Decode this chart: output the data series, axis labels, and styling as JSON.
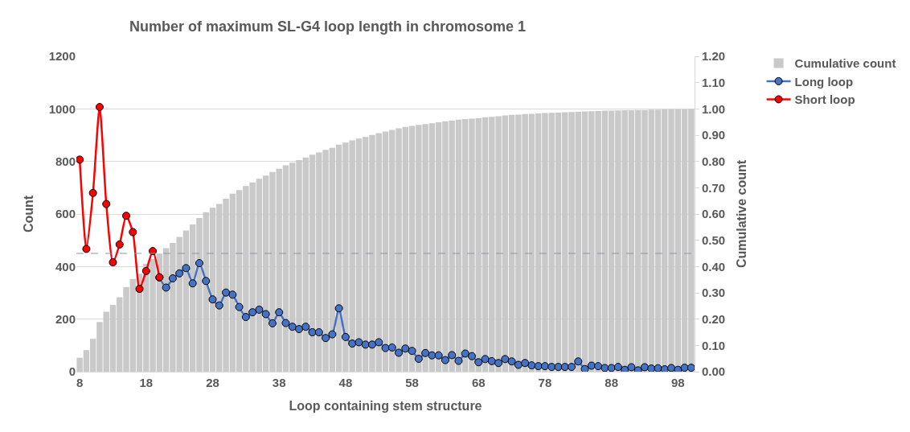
{
  "chart_data": {
    "type": "line",
    "title": "Number of maximum SL-G4 loop length in chromosome 1",
    "xlabel": "Loop containing stem structure",
    "ylabel": "Count",
    "y2label": "Cumulative count",
    "categories": [
      "8",
      null,
      null,
      null,
      null,
      null,
      null,
      null,
      null,
      null,
      "18",
      null,
      null,
      null,
      null,
      null,
      null,
      null,
      null,
      null,
      "28",
      null,
      null,
      null,
      null,
      null,
      null,
      null,
      null,
      null,
      "38",
      null,
      null,
      null,
      null,
      null,
      null,
      null,
      null,
      null,
      "48",
      null,
      null,
      null,
      null,
      null,
      null,
      null,
      null,
      null,
      "58",
      null,
      null,
      null,
      null,
      null,
      null,
      null,
      null,
      null,
      "68",
      null,
      null,
      null,
      null,
      null,
      null,
      null,
      null,
      null,
      "78",
      null,
      null,
      null,
      null,
      null,
      null,
      null,
      null,
      null,
      "88",
      null,
      null,
      null,
      null,
      null,
      null,
      null,
      null,
      null,
      "98",
      null,
      null
    ],
    "series": [
      {
        "name": "Cumulative count",
        "type": "bar",
        "axis": "y2",
        "color": "#c9c9c9",
        "values": [
          0.053,
          0.082,
          0.125,
          0.189,
          0.228,
          0.254,
          0.283,
          0.322,
          0.353,
          0.373,
          0.41,
          0.429,
          0.449,
          0.47,
          0.49,
          0.513,
          0.537,
          0.56,
          0.585,
          0.607,
          0.624,
          0.638,
          0.658,
          0.677,
          0.691,
          0.706,
          0.72,
          0.734,
          0.746,
          0.76,
          0.772,
          0.785,
          0.795,
          0.805,
          0.815,
          0.826,
          0.834,
          0.844,
          0.852,
          0.864,
          0.872,
          0.88,
          0.887,
          0.893,
          0.901,
          0.908,
          0.914,
          0.92,
          0.926,
          0.931,
          0.935,
          0.939,
          0.942,
          0.945,
          0.949,
          0.953,
          0.955,
          0.959,
          0.961,
          0.963,
          0.965,
          0.968,
          0.97,
          0.972,
          0.975,
          0.977,
          0.978,
          0.98,
          0.981,
          0.983,
          0.984,
          0.985,
          0.986,
          0.987,
          0.988,
          0.989,
          0.99,
          0.991,
          0.992,
          0.993,
          0.993,
          0.994,
          0.995,
          0.995,
          0.996,
          0.996,
          0.997,
          0.997,
          0.998,
          0.998,
          0.999,
          0.999,
          1.0
        ]
      },
      {
        "name": "Long loop",
        "color": "#4472c4",
        "values": [
          null,
          null,
          null,
          null,
          null,
          null,
          null,
          null,
          null,
          null,
          null,
          null,
          359,
          320,
          355,
          374,
          394,
          336,
          413,
          345,
          275,
          252,
          301,
          293,
          246,
          208,
          226,
          236,
          219,
          184,
          226,
          185,
          171,
          162,
          171,
          150,
          150,
          128,
          142,
          241,
          132,
          107,
          112,
          103,
          103,
          112,
          90,
          92,
          72,
          88,
          79,
          49,
          71,
          62,
          62,
          44,
          63,
          41,
          69,
          59,
          36,
          48,
          40,
          33,
          48,
          39,
          26,
          33,
          24,
          21,
          21,
          18,
          18,
          18,
          18,
          39,
          10,
          23,
          21,
          14,
          14,
          18,
          7,
          17,
          5,
          17,
          12,
          13,
          9,
          14,
          7,
          15,
          15
        ]
      },
      {
        "name": "Short loop",
        "color": "#ff0000",
        "values": [
          807,
          467,
          680,
          1007,
          638,
          416,
          484,
          593,
          531,
          315,
          383,
          459,
          359,
          null,
          null,
          null,
          null,
          null,
          null,
          null,
          null,
          null,
          null,
          null,
          null,
          null,
          null,
          null,
          null,
          null,
          null,
          null,
          null,
          null,
          null,
          null,
          null,
          null,
          null,
          null,
          null,
          null,
          null,
          null,
          null,
          null,
          null,
          null,
          null,
          null,
          null,
          null,
          null,
          null,
          null,
          null,
          null,
          null,
          null,
          null,
          null,
          null,
          null,
          null,
          null,
          null,
          null,
          null,
          null,
          null,
          null,
          null,
          null,
          null,
          null,
          null,
          null,
          null,
          null,
          null,
          null,
          null,
          null,
          null,
          null,
          null,
          null,
          null,
          null,
          null,
          null,
          null,
          null
        ]
      }
    ],
    "ylim": [
      0,
      1200
    ],
    "yticks": [
      0,
      200,
      400,
      600,
      800,
      1000,
      1200
    ],
    "y2lim": [
      0,
      1.2
    ],
    "y2ticks": [
      {
        "value": 0,
        "label": "0.00"
      },
      {
        "value": 0.1,
        "label": "0.10"
      },
      {
        "value": 0.2,
        "label": "0.20"
      },
      {
        "value": 0.3,
        "label": "0.30"
      },
      {
        "value": 0.4,
        "label": "0.40"
      },
      {
        "value": 0.5,
        "label": "0.50"
      },
      {
        "value": 0.6,
        "label": "0.60"
      },
      {
        "value": 0.7,
        "label": "0.70"
      },
      {
        "value": 0.8,
        "label": "0.80"
      },
      {
        "value": 0.9,
        "label": "0.90"
      },
      {
        "value": 1.0,
        "label": "1.00"
      },
      {
        "value": 1.1,
        "label": "1.10"
      },
      {
        "value": 1.2,
        "label": "1.20"
      }
    ],
    "ref_lines": [
      {
        "axis": "y2",
        "value": 0.45,
        "color": "#8496b0",
        "line_style": "dashed"
      }
    ],
    "grid": "y",
    "legend": "top right",
    "marker": "circle",
    "line_style": "solid"
  }
}
